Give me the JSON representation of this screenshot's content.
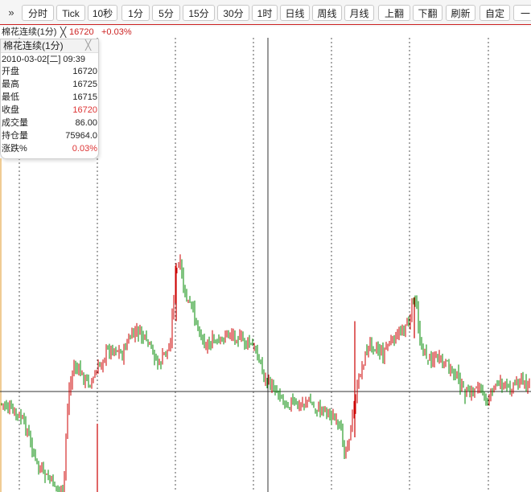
{
  "toolbar": {
    "more_glyph": "»",
    "buttons": [
      "分时",
      "Tick",
      "10秒",
      "1分",
      "5分",
      "15分",
      "30分",
      "1时",
      "日线",
      "周线",
      "月线",
      "上翻",
      "下翻",
      "刷新",
      "自定",
      "一"
    ]
  },
  "infobar": {
    "title": "棉花连续(1分)",
    "close_glyph": "╳",
    "price": "16720",
    "change": "+0.03%"
  },
  "popup": {
    "title": "棉花连续(1分)",
    "close_glyph": "╳",
    "datetime": "2010-03-02[二] 09:39",
    "rows": [
      {
        "label": "开盘",
        "value": "16720"
      },
      {
        "label": "最高",
        "value": "16725"
      },
      {
        "label": "最低",
        "value": "16715"
      },
      {
        "label": "收盘",
        "value": "16720"
      },
      {
        "label": "成交量",
        "value": "86.00"
      },
      {
        "label": "持仓量",
        "value": "75964.0"
      },
      {
        "label": "涨跌%",
        "value": "0.03%"
      }
    ]
  },
  "colors": {
    "up": "#cc0000",
    "down": "#008800",
    "grid": "#555555",
    "crosshair": "#333333",
    "accent": "#cc2222"
  },
  "chart_data": {
    "type": "candlestick",
    "series_close_path": [
      [
        0.0,
        0.741
      ],
      [
        0.01,
        0.745
      ],
      [
        0.02,
        0.764
      ],
      [
        0.03,
        0.773
      ],
      [
        0.04,
        0.787
      ],
      [
        0.05,
        0.816
      ],
      [
        0.06,
        0.87
      ],
      [
        0.07,
        0.92
      ],
      [
        0.08,
        0.945
      ],
      [
        0.09,
        0.96
      ],
      [
        0.1,
        0.975
      ],
      [
        0.11,
        0.99
      ],
      [
        0.12,
        1.0
      ],
      [
        0.125,
        0.8
      ],
      [
        0.13,
        0.7
      ],
      [
        0.14,
        0.63
      ],
      [
        0.15,
        0.65
      ],
      [
        0.16,
        0.67
      ],
      [
        0.17,
        0.68
      ],
      [
        0.18,
        0.66
      ],
      [
        0.19,
        0.62
      ],
      [
        0.2,
        0.59
      ],
      [
        0.21,
        0.58
      ],
      [
        0.22,
        0.58
      ],
      [
        0.23,
        0.6
      ],
      [
        0.24,
        0.56
      ],
      [
        0.25,
        0.54
      ],
      [
        0.26,
        0.53
      ],
      [
        0.27,
        0.55
      ],
      [
        0.28,
        0.57
      ],
      [
        0.29,
        0.6
      ],
      [
        0.3,
        0.63
      ],
      [
        0.31,
        0.59
      ],
      [
        0.32,
        0.58
      ],
      [
        0.33,
        0.36
      ],
      [
        0.34,
        0.33
      ],
      [
        0.345,
        0.41
      ],
      [
        0.35,
        0.43
      ],
      [
        0.36,
        0.46
      ],
      [
        0.37,
        0.5
      ],
      [
        0.38,
        0.55
      ],
      [
        0.39,
        0.57
      ],
      [
        0.4,
        0.56
      ],
      [
        0.41,
        0.57
      ],
      [
        0.42,
        0.55
      ],
      [
        0.43,
        0.53
      ],
      [
        0.44,
        0.54
      ],
      [
        0.45,
        0.55
      ],
      [
        0.46,
        0.56
      ],
      [
        0.47,
        0.57
      ],
      [
        0.48,
        0.58
      ],
      [
        0.49,
        0.62
      ],
      [
        0.5,
        0.67
      ],
      [
        0.51,
        0.69
      ],
      [
        0.52,
        0.7
      ],
      [
        0.53,
        0.72
      ],
      [
        0.54,
        0.74
      ],
      [
        0.55,
        0.74
      ],
      [
        0.56,
        0.75
      ],
      [
        0.57,
        0.74
      ],
      [
        0.58,
        0.73
      ],
      [
        0.59,
        0.75
      ],
      [
        0.6,
        0.76
      ],
      [
        0.61,
        0.75
      ],
      [
        0.62,
        0.77
      ],
      [
        0.63,
        0.79
      ],
      [
        0.64,
        0.82
      ],
      [
        0.65,
        0.88
      ],
      [
        0.66,
        0.82
      ],
      [
        0.67,
        0.72
      ],
      [
        0.68,
        0.64
      ],
      [
        0.69,
        0.59
      ],
      [
        0.7,
        0.56
      ],
      [
        0.71,
        0.58
      ],
      [
        0.72,
        0.6
      ],
      [
        0.73,
        0.57
      ],
      [
        0.74,
        0.56
      ],
      [
        0.75,
        0.54
      ],
      [
        0.76,
        0.52
      ],
      [
        0.77,
        0.5
      ],
      [
        0.78,
        0.43
      ],
      [
        0.785,
        0.45
      ],
      [
        0.79,
        0.55
      ],
      [
        0.8,
        0.6
      ],
      [
        0.81,
        0.61
      ],
      [
        0.82,
        0.6
      ],
      [
        0.83,
        0.62
      ],
      [
        0.84,
        0.63
      ],
      [
        0.85,
        0.64
      ],
      [
        0.86,
        0.66
      ],
      [
        0.87,
        0.7
      ],
      [
        0.88,
        0.72
      ],
      [
        0.89,
        0.71
      ],
      [
        0.9,
        0.68
      ],
      [
        0.91,
        0.72
      ],
      [
        0.92,
        0.73
      ],
      [
        0.93,
        0.7
      ],
      [
        0.94,
        0.67
      ],
      [
        0.95,
        0.69
      ],
      [
        0.96,
        0.7
      ],
      [
        0.97,
        0.68
      ],
      [
        0.98,
        0.67
      ],
      [
        0.99,
        0.69
      ],
      [
        1.0,
        0.68
      ]
    ],
    "crosshair": {
      "price": "16720",
      "time": "2010-03-02 09:39"
    }
  }
}
